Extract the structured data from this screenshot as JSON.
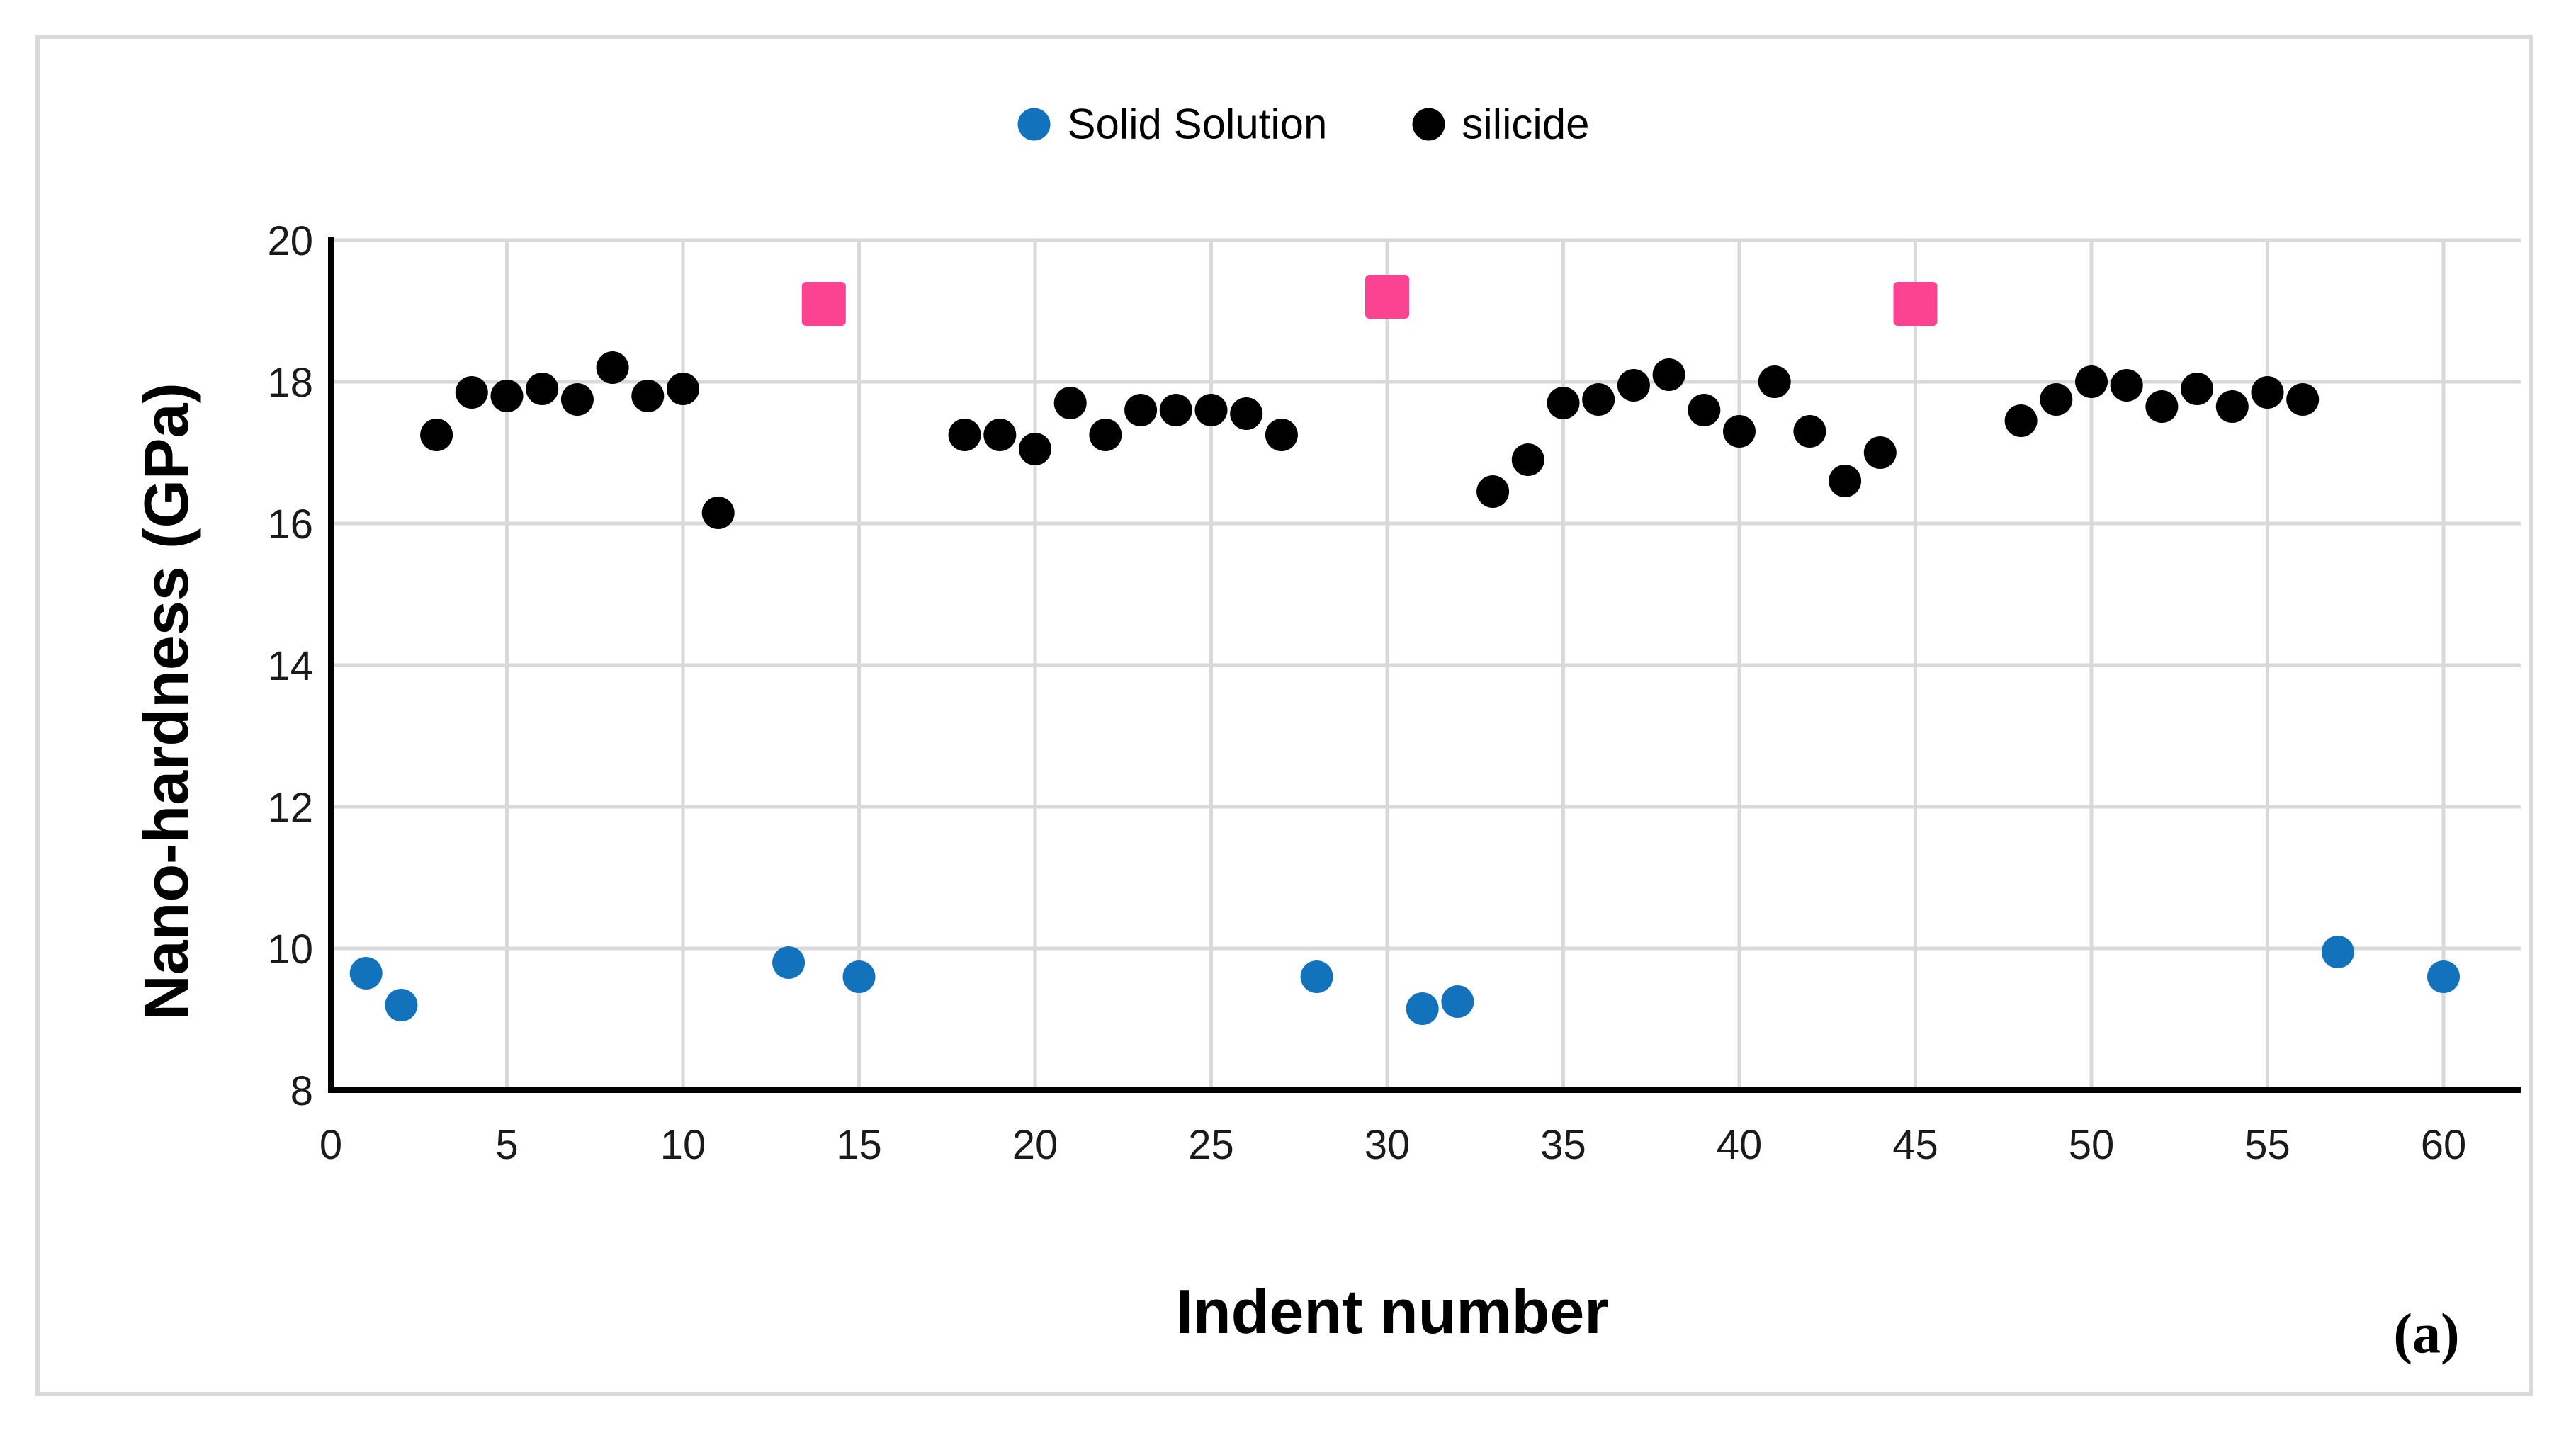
{
  "chart_data": {
    "type": "scatter",
    "xlabel": "Indent number",
    "ylabel": "Nano-hardness (GPa)",
    "xlim": [
      0,
      60
    ],
    "ylim": [
      8,
      20
    ],
    "x_ticks": [
      0,
      5,
      10,
      15,
      20,
      25,
      30,
      35,
      40,
      45,
      50,
      55,
      60
    ],
    "y_ticks": [
      8,
      10,
      12,
      14,
      16,
      18,
      20
    ],
    "grid": true,
    "legend_position": "top-center",
    "colors": {
      "grid": "#d9d9d9",
      "axis": "#000000",
      "tick_text": "#1a1a1a"
    },
    "series": [
      {
        "id": "solid-solution",
        "label": "Solid Solution",
        "marker": "circle",
        "color": "#1272bc",
        "show_in_legend": true,
        "points": [
          [
            1,
            9.65
          ],
          [
            2,
            9.2
          ],
          [
            13,
            9.8
          ],
          [
            15,
            9.6
          ],
          [
            28,
            9.6
          ],
          [
            31,
            9.15
          ],
          [
            32,
            9.25
          ],
          [
            57,
            9.95
          ],
          [
            60,
            9.6
          ]
        ]
      },
      {
        "id": "silicide",
        "label": "silicide",
        "marker": "circle",
        "color": "#000000",
        "show_in_legend": true,
        "points": [
          [
            3,
            17.25
          ],
          [
            4,
            17.85
          ],
          [
            5,
            17.8
          ],
          [
            6,
            17.9
          ],
          [
            7,
            17.75
          ],
          [
            8,
            18.2
          ],
          [
            9,
            17.8
          ],
          [
            10,
            17.9
          ],
          [
            11,
            16.15
          ],
          [
            18,
            17.25
          ],
          [
            19,
            17.25
          ],
          [
            20,
            17.05
          ],
          [
            21,
            17.7
          ],
          [
            22,
            17.25
          ],
          [
            23,
            17.6
          ],
          [
            24,
            17.6
          ],
          [
            25,
            17.6
          ],
          [
            26,
            17.55
          ],
          [
            27,
            17.25
          ],
          [
            33,
            16.45
          ],
          [
            34,
            16.9
          ],
          [
            35,
            17.7
          ],
          [
            36,
            17.75
          ],
          [
            37,
            17.95
          ],
          [
            38,
            18.1
          ],
          [
            39,
            17.6
          ],
          [
            40,
            17.3
          ],
          [
            41,
            18.0
          ],
          [
            42,
            17.3
          ],
          [
            43,
            16.6
          ],
          [
            44,
            17.0
          ],
          [
            48,
            17.45
          ],
          [
            49,
            17.75
          ],
          [
            50,
            18.0
          ],
          [
            51,
            17.95
          ],
          [
            52,
            17.65
          ],
          [
            53,
            17.9
          ],
          [
            54,
            17.65
          ],
          [
            55,
            17.85
          ],
          [
            56,
            17.75
          ]
        ]
      },
      {
        "id": "pink-square",
        "label": "",
        "marker": "square",
        "color": "#fb4392",
        "show_in_legend": false,
        "points": [
          [
            14,
            19.1
          ],
          [
            30,
            19.2
          ],
          [
            45,
            19.1
          ]
        ]
      }
    ],
    "corner_label": "(a)"
  }
}
